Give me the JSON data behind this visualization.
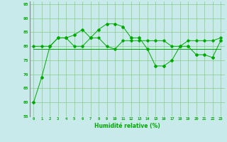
{
  "title": "",
  "xlabel": "Humidité relative (%)",
  "ylabel": "",
  "background_color": "#c8eaea",
  "grid_color": "#88cc88",
  "line_color": "#00aa00",
  "spine_color": "#888888",
  "ylim": [
    55,
    96
  ],
  "xlim": [
    -0.5,
    23.5
  ],
  "yticks": [
    55,
    60,
    65,
    70,
    75,
    80,
    85,
    90,
    95
  ],
  "xticks": [
    0,
    1,
    2,
    3,
    4,
    5,
    6,
    7,
    8,
    9,
    10,
    11,
    12,
    13,
    14,
    15,
    16,
    17,
    18,
    19,
    20,
    21,
    22,
    23
  ],
  "line1": [
    60,
    69,
    80,
    83,
    83,
    84,
    86,
    83,
    86,
    88,
    88,
    87,
    83,
    83,
    79,
    73,
    73,
    75,
    80,
    80,
    77,
    77,
    76,
    82
  ],
  "line2": [
    80,
    80,
    80,
    83,
    83,
    80,
    80,
    83,
    83,
    80,
    79,
    82,
    82,
    82,
    82,
    82,
    82,
    80,
    80,
    82,
    82,
    82,
    82,
    83
  ],
  "line3": [
    79,
    79,
    79,
    79,
    79,
    79,
    79,
    79,
    79,
    79,
    79,
    79,
    79,
    79,
    79,
    79,
    79,
    79,
    79,
    79,
    79,
    79,
    79,
    79
  ]
}
